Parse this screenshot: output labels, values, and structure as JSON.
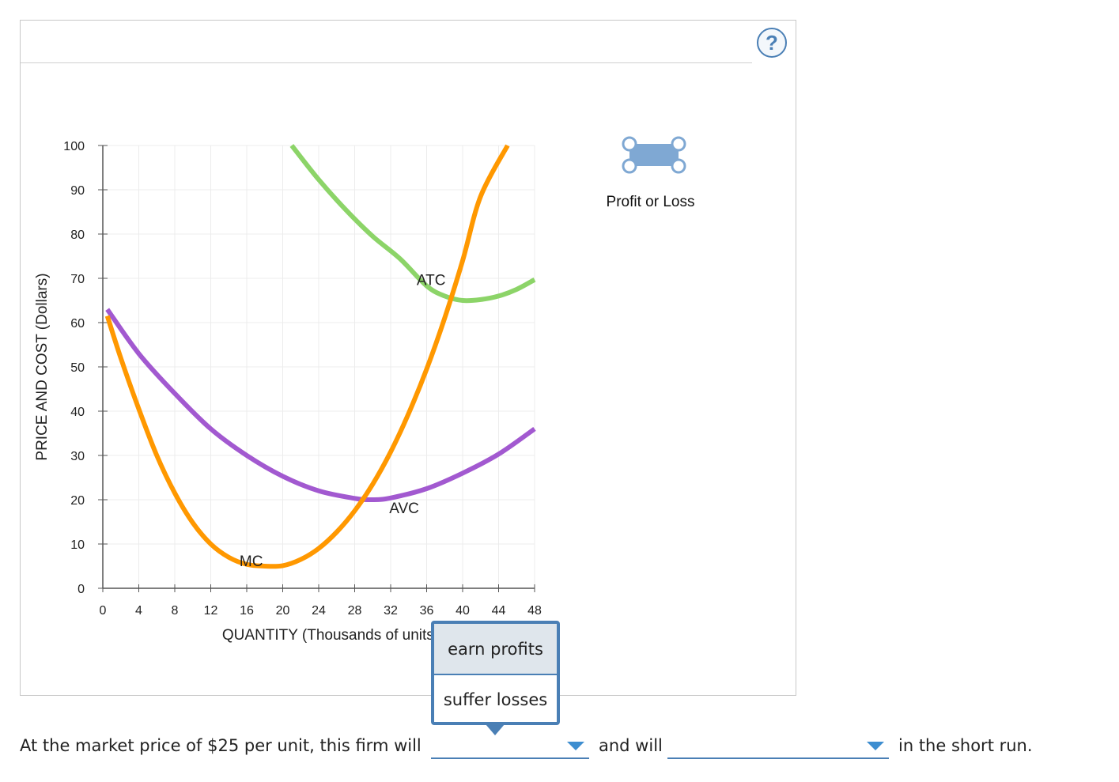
{
  "help": {
    "label": "?"
  },
  "legend": {
    "label": "Profit or Loss",
    "icon": "profit-loss-rectangle-icon",
    "color": "#7fa8d3"
  },
  "chart_data": {
    "type": "line",
    "xlabel": "QUANTITY (Thousands of units)",
    "ylabel": "PRICE AND COST (Dollars)",
    "xlim": [
      0,
      48
    ],
    "ylim": [
      0,
      100
    ],
    "x_ticks": [
      "0",
      "4",
      "8",
      "12",
      "16",
      "20",
      "24",
      "28",
      "32",
      "36",
      "40",
      "44",
      "48"
    ],
    "y_ticks": [
      "0",
      "10",
      "20",
      "30",
      "40",
      "50",
      "60",
      "70",
      "80",
      "90",
      "100"
    ],
    "grid": true,
    "series": [
      {
        "name": "MC",
        "color": "#ff9800",
        "points": [
          [
            0.5,
            61.5
          ],
          [
            2,
            52
          ],
          [
            4,
            40.5
          ],
          [
            6,
            30
          ],
          [
            8,
            21.5
          ],
          [
            10,
            14.8
          ],
          [
            12,
            10
          ],
          [
            14,
            7
          ],
          [
            16,
            5.4
          ],
          [
            18,
            5
          ],
          [
            20,
            5.1
          ],
          [
            22,
            6.5
          ],
          [
            24,
            9
          ],
          [
            26,
            12.7
          ],
          [
            28,
            17.5
          ],
          [
            30,
            23.5
          ],
          [
            32,
            30.8
          ],
          [
            34,
            39.5
          ],
          [
            36,
            49.5
          ],
          [
            38,
            61
          ],
          [
            40,
            74
          ],
          [
            42,
            88.5
          ],
          [
            45,
            100
          ]
        ]
      },
      {
        "name": "AVC",
        "color": "#a259d0",
        "points": [
          [
            0.5,
            63
          ],
          [
            4,
            53
          ],
          [
            8,
            44
          ],
          [
            12,
            36
          ],
          [
            16,
            30
          ],
          [
            20,
            25.3
          ],
          [
            24,
            22
          ],
          [
            28,
            20.3
          ],
          [
            30,
            20
          ],
          [
            32,
            20.4
          ],
          [
            36,
            22.5
          ],
          [
            40,
            26
          ],
          [
            44,
            30.3
          ],
          [
            48,
            36
          ]
        ]
      },
      {
        "name": "ATC",
        "color": "#8cd468",
        "points": [
          [
            21,
            100
          ],
          [
            24,
            92.3
          ],
          [
            27,
            85.5
          ],
          [
            30,
            79.5
          ],
          [
            33,
            74.5
          ],
          [
            36,
            68.3
          ],
          [
            38,
            66
          ],
          [
            40,
            65
          ],
          [
            42,
            65.2
          ],
          [
            44,
            66
          ],
          [
            46,
            67.5
          ],
          [
            48,
            69.7
          ]
        ]
      }
    ],
    "annotations": [
      {
        "text": "MC",
        "x": 16.5,
        "y": 5
      },
      {
        "text": "AVC",
        "x": 33.5,
        "y": 17
      },
      {
        "text": "ATC",
        "x": 36.5,
        "y": 68.5
      }
    ]
  },
  "question": {
    "prefix": "At the market price of $25 per unit, this firm will",
    "middle": "and will",
    "suffix": "in the short run.",
    "dropdown1": {
      "value": "",
      "options": [
        "earn profits",
        "suffer losses"
      ]
    },
    "dropdown2": {
      "value": ""
    }
  }
}
